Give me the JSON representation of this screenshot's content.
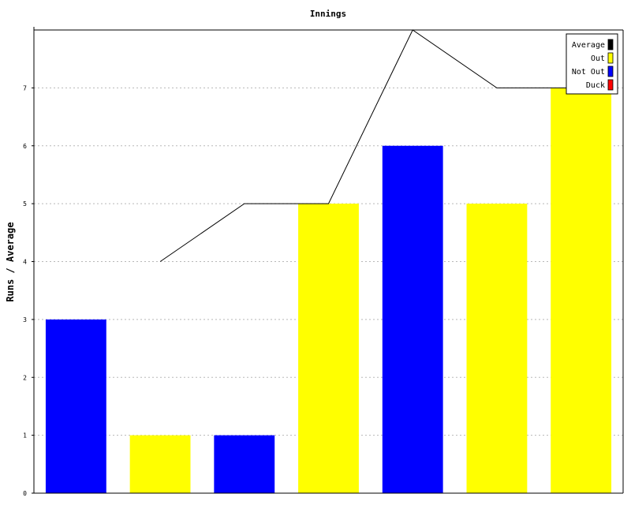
{
  "chart_data": {
    "type": "bar",
    "title": "Innings",
    "xlabel": "",
    "ylabel": "Runs / Average",
    "ylim": [
      0,
      8
    ],
    "yticks": [
      "0",
      "1",
      "2",
      "3",
      "4",
      "5",
      "6",
      "7"
    ],
    "grid": true,
    "legend_position": "top-right",
    "legend": [
      {
        "label": "Average",
        "color": "#000000"
      },
      {
        "label": "Out",
        "color": "#ffff00"
      },
      {
        "label": "Not Out",
        "color": "#0000ff"
      },
      {
        "label": "Duck",
        "color": "#ff0000"
      }
    ],
    "bars": [
      {
        "value": 3,
        "status": "Not Out"
      },
      {
        "value": 1,
        "status": "Out"
      },
      {
        "value": 1,
        "status": "Not Out"
      },
      {
        "value": 5,
        "status": "Out"
      },
      {
        "value": 6,
        "status": "Not Out"
      },
      {
        "value": 5,
        "status": "Out"
      },
      {
        "value": 7,
        "status": "Out"
      }
    ],
    "average": [
      null,
      4,
      5,
      5,
      8,
      7,
      7
    ]
  }
}
